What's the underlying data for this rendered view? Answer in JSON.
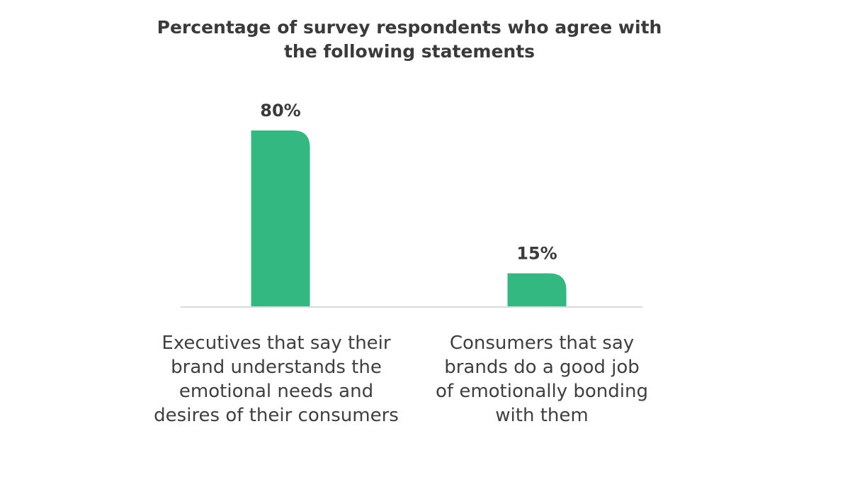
{
  "chart_data": {
    "type": "bar",
    "title": "Percentage of survey respondents who agree with the following statements",
    "title_lines": [
      "Percentage of survey respondents who agree with",
      "the following statements"
    ],
    "categories": [
      "Executives that say their brand understands the emotional needs and desires of their consumers",
      "Consumers that say brands do a good job of emotionally bonding with them"
    ],
    "category_lines": [
      "Executives that say their\nbrand understands the\nemotional needs and\ndesires of their consumers",
      "Consumers that say\nbrands do a good job\nof emotionally bonding\nwith them"
    ],
    "values": [
      80,
      15
    ],
    "value_labels": [
      "80%",
      "15%"
    ],
    "unit": "%",
    "xlabel": "",
    "ylabel": "",
    "ylim": [
      0,
      80
    ],
    "grid": false,
    "legend": "none",
    "colors": {
      "bar": "#33b882",
      "axis": "#d9d9d9",
      "text": "#3a3a3a"
    }
  }
}
